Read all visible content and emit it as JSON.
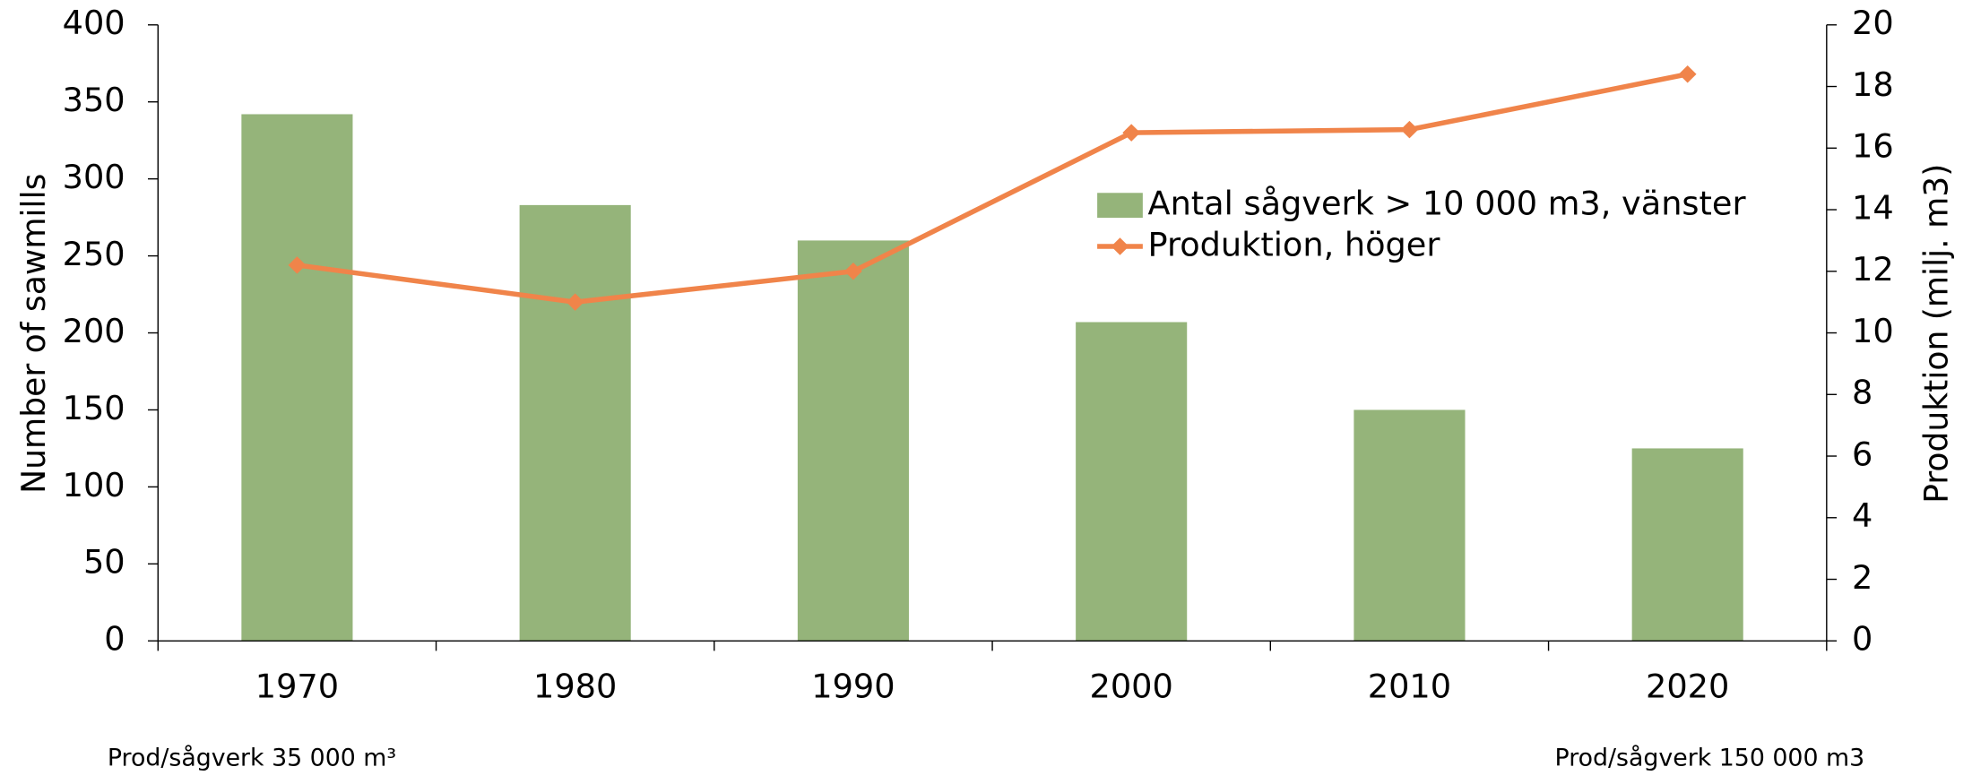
{
  "chart_data": {
    "type": "bar_line",
    "categories": [
      "1970",
      "1980",
      "1990",
      "2000",
      "2010",
      "2020"
    ],
    "series": [
      {
        "name": "Antal sågverk > 10 000 m3, vänster",
        "type": "bar",
        "color": "#95b47a",
        "axis": "y",
        "values": [
          342,
          283,
          260,
          207,
          150,
          125
        ]
      },
      {
        "name": "Produktion, höger",
        "type": "line",
        "color": "#f0844a",
        "axis": "y2",
        "values": [
          12.2,
          11.0,
          12.0,
          16.5,
          16.6,
          18.4
        ]
      }
    ],
    "ylabel": "Number of sawmills",
    "y2label": "Produktion (milj. m3)",
    "ylim": [
      0,
      400
    ],
    "yticks": [
      0,
      50,
      100,
      150,
      200,
      250,
      300,
      350,
      400
    ],
    "y2lim": [
      0,
      20
    ],
    "y2ticks": [
      0,
      2,
      4,
      6,
      8,
      10,
      12,
      14,
      16,
      18,
      20
    ],
    "legend": "upper right",
    "annotations": [
      "Prod/sågverk 35 000 m³",
      "Prod/sågverk 150 000 m3"
    ]
  }
}
